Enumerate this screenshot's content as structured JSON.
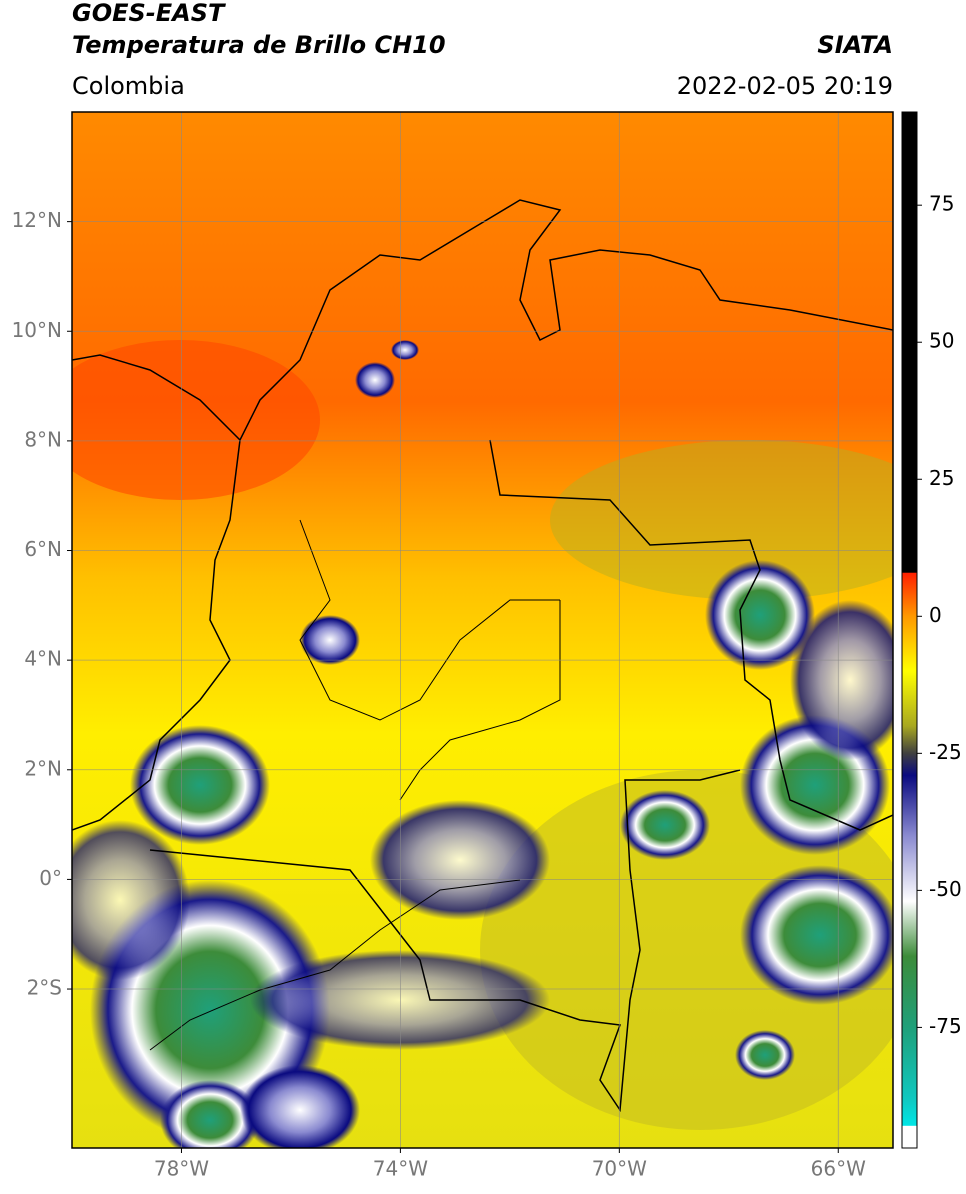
{
  "chart_data": {
    "type": "map",
    "title": "GOES-EAST",
    "subtitle": "Temperatura de Brillo CH10",
    "region": "Colombia",
    "source": "SIATA",
    "datetime": "2022-02-05 20:19",
    "xlim": [
      -80,
      -65
    ],
    "ylim": [
      -4.9,
      14
    ],
    "xticks": [
      {
        "value": -78,
        "label": "78°W"
      },
      {
        "value": -74,
        "label": "74°W"
      },
      {
        "value": -70,
        "label": "70°W"
      },
      {
        "value": -66,
        "label": "66°W"
      }
    ],
    "yticks": [
      {
        "value": -2,
        "label": "2°S"
      },
      {
        "value": 0,
        "label": "0°"
      },
      {
        "value": 2,
        "label": "2°N"
      },
      {
        "value": 4,
        "label": "4°N"
      },
      {
        "value": 6,
        "label": "6°N"
      },
      {
        "value": 8,
        "label": "8°N"
      },
      {
        "value": 10,
        "label": "10°N"
      },
      {
        "value": 12,
        "label": "12°N"
      }
    ],
    "grid": true,
    "colorbar": {
      "lim": [
        -97,
        92
      ],
      "ticks": [
        75,
        50,
        25,
        0,
        -25,
        -50,
        -75
      ],
      "stops": [
        {
          "value": -97,
          "color": "#ffffff"
        },
        {
          "value": -93,
          "color": "#ffffff"
        },
        {
          "value": -92.9,
          "color": "#00e5e5"
        },
        {
          "value": -88,
          "color": "#10c8c0"
        },
        {
          "value": -75,
          "color": "#1fa07a"
        },
        {
          "value": -62,
          "color": "#3d8c3a"
        },
        {
          "value": -52,
          "color": "#ffffff"
        },
        {
          "value": -40,
          "color": "#8a8ad0"
        },
        {
          "value": -29,
          "color": "#0a0a80"
        },
        {
          "value": -25,
          "color": "#404040"
        },
        {
          "value": -20,
          "color": "#a8a820"
        },
        {
          "value": -10,
          "color": "#ffff00"
        },
        {
          "value": 0,
          "color": "#ff9900"
        },
        {
          "value": 7.9,
          "color": "#ff2000"
        },
        {
          "value": 8,
          "color": "#000000"
        },
        {
          "value": 92,
          "color": "#000000"
        }
      ]
    }
  }
}
